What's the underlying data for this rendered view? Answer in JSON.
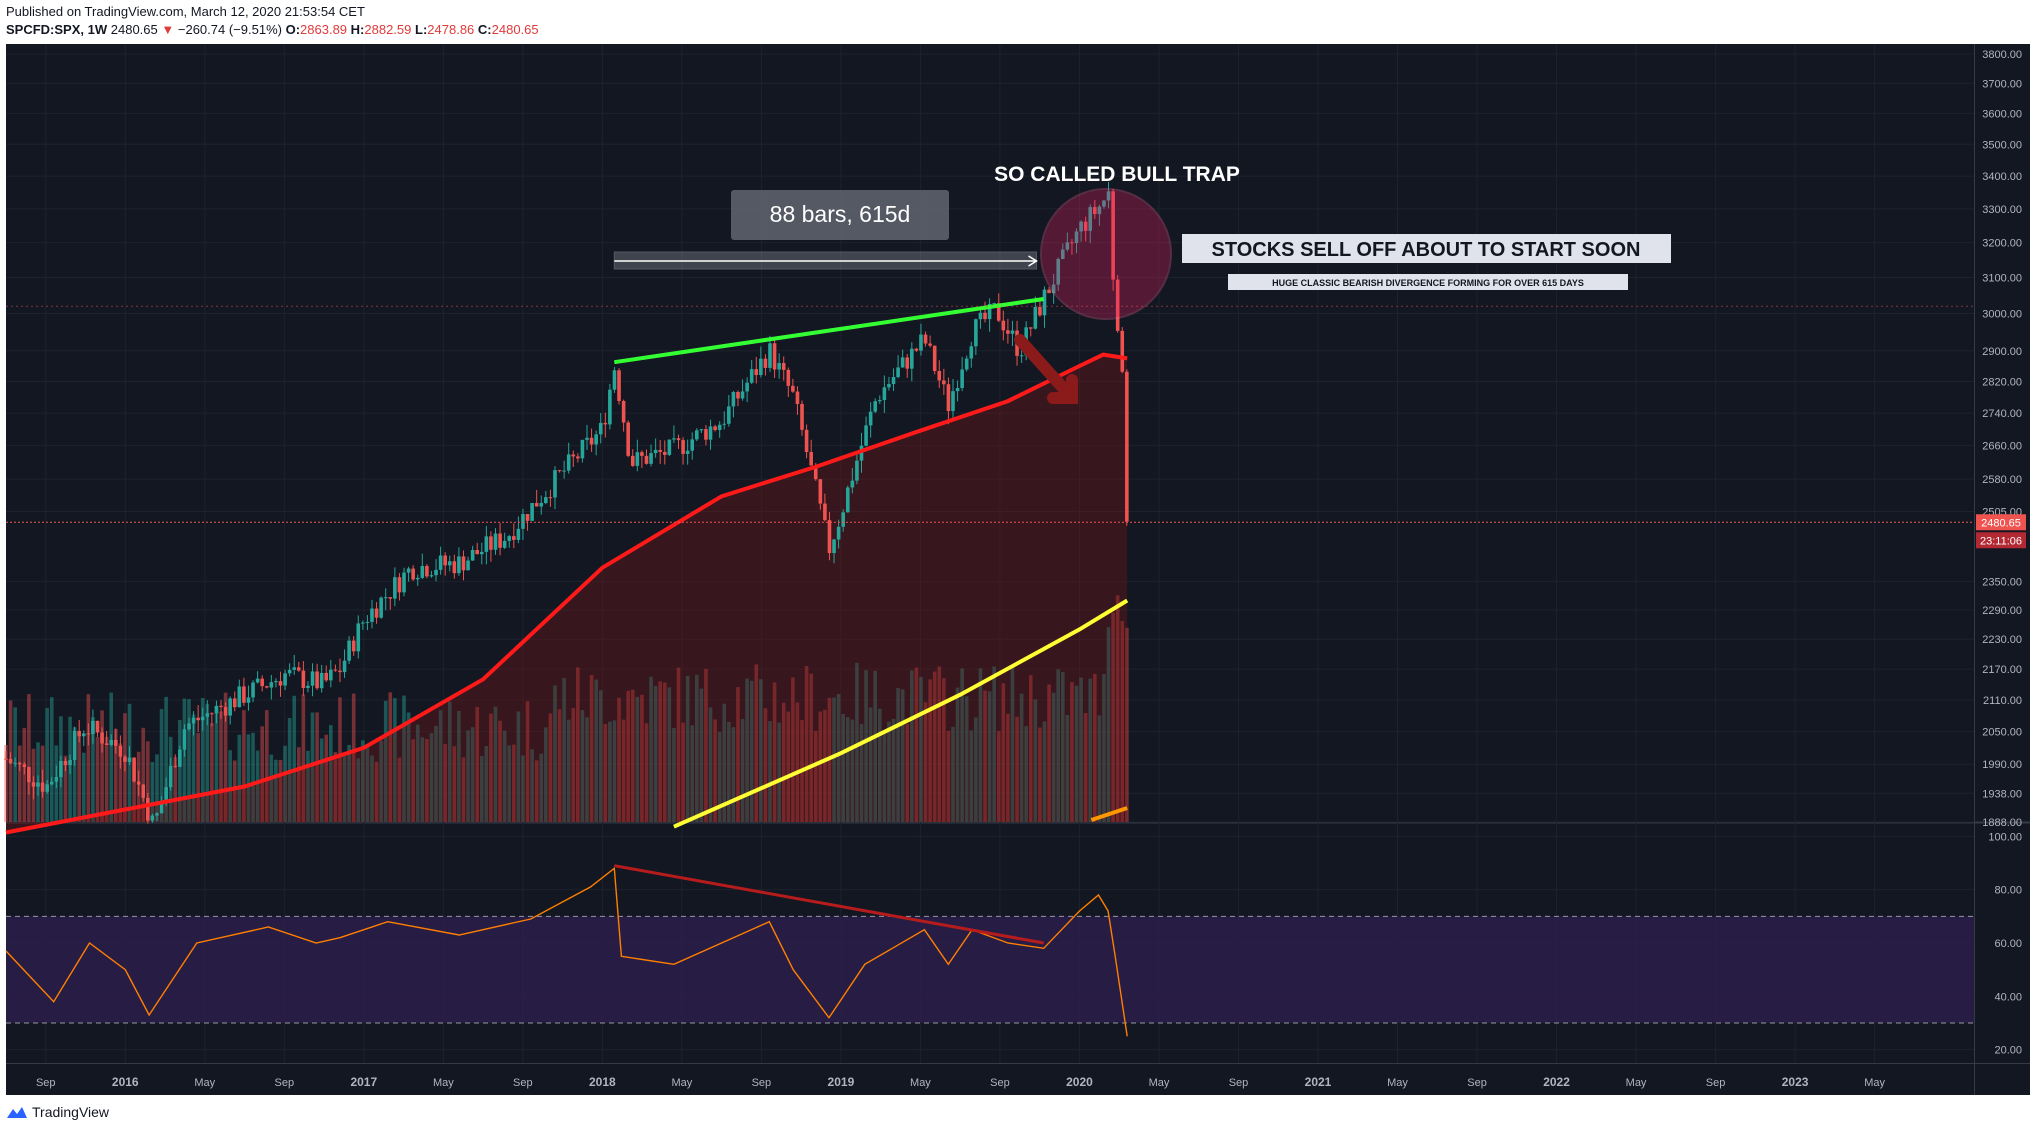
{
  "header": {
    "published": "Published on TradingView.com, March 12, 2020 21:53:54 CET",
    "symbol": "SPCFD:SPX, 1W",
    "last": "2480.65",
    "change_arrow": "▼",
    "change": "−260.74 (−9.51%)",
    "o_label": "O:",
    "o": "2863.89",
    "h_label": "H:",
    "h": "2882.59",
    "l_label": "L:",
    "l": "2478.86",
    "c_label": "C:",
    "c": "2480.65"
  },
  "footer": {
    "brand": "TradingView",
    "logo_icon": "tradingview-logo-icon"
  },
  "annotations": {
    "measure_label": "88 bars, 615d",
    "bull_trap": "SO CALLED BULL TRAP",
    "sell_off": "STOCKS SELL OFF ABOUT TO START SOON",
    "divergence": "HUGE CLASSIC BEARISH DIVERGENCE FORMING FOR OVER 615 DAYS"
  },
  "colors": {
    "background": "#131722",
    "up": "#26a69a",
    "down": "#ef5350",
    "ma_red": "#ff1a1a",
    "ma_yellow": "#ffff33",
    "trend_green": "#33ff33",
    "rsi_line": "#ff7f00",
    "rsi_band": "#2d1e4d"
  },
  "chart_data": [
    {
      "type": "candlestick",
      "timeframe": "1W",
      "yscale": "log",
      "y_ticks": [
        "3800.00",
        "3700.00",
        "3600.00",
        "3500.00",
        "3400.00",
        "3300.00",
        "3200.00",
        "3100.00",
        "3000.00",
        "2900.00",
        "2820.00",
        "2740.00",
        "2660.00",
        "2580.00",
        "2505.00",
        "2350.00",
        "2290.00",
        "2230.00",
        "2170.00",
        "2110.00",
        "2050.00",
        "1990.00",
        "1938.00",
        "1888.00"
      ],
      "x_ticks": [
        "Sep",
        "2016",
        "May",
        "Sep",
        "2017",
        "May",
        "Sep",
        "2018",
        "May",
        "Sep",
        "2019",
        "May",
        "Sep",
        "2020",
        "May",
        "Sep",
        "2021",
        "May",
        "Sep",
        "2022",
        "May",
        "Sep",
        "2023",
        "May"
      ],
      "last_price_label": "2480.65",
      "countdown_label": "23:11:06",
      "close_path": [
        [
          2015.5,
          2000
        ],
        [
          2015.67,
          1950
        ],
        [
          2015.83,
          2060
        ],
        [
          2016.0,
          2015
        ],
        [
          2016.12,
          1880
        ],
        [
          2016.25,
          2060
        ],
        [
          2016.5,
          2120
        ],
        [
          2016.67,
          2160
        ],
        [
          2016.83,
          2140
        ],
        [
          2016.9,
          2170
        ],
        [
          2017.0,
          2270
        ],
        [
          2017.2,
          2380
        ],
        [
          2017.4,
          2390
        ],
        [
          2017.6,
          2450
        ],
        [
          2017.8,
          2575
        ],
        [
          2018.0,
          2700
        ],
        [
          2018.05,
          2860
        ],
        [
          2018.12,
          2620
        ],
        [
          2018.3,
          2650
        ],
        [
          2018.5,
          2720
        ],
        [
          2018.7,
          2900
        ],
        [
          2018.8,
          2780
        ],
        [
          2018.95,
          2420
        ],
        [
          2019.0,
          2500
        ],
        [
          2019.15,
          2780
        ],
        [
          2019.35,
          2930
        ],
        [
          2019.45,
          2760
        ],
        [
          2019.55,
          2950
        ],
        [
          2019.65,
          3010
        ],
        [
          2019.75,
          2900
        ],
        [
          2019.85,
          3040
        ],
        [
          2020.0,
          3240
        ],
        [
          2020.1,
          3320
        ],
        [
          2020.12,
          3370
        ],
        [
          2020.15,
          3000
        ],
        [
          2020.17,
          2970
        ],
        [
          2020.2,
          2480.65
        ]
      ],
      "ma_red": [
        [
          2015.5,
          1870
        ],
        [
          2016.5,
          1950
        ],
        [
          2017.0,
          2020
        ],
        [
          2017.5,
          2150
        ],
        [
          2018.0,
          2380
        ],
        [
          2018.5,
          2540
        ],
        [
          2018.9,
          2610
        ],
        [
          2019.3,
          2690
        ],
        [
          2019.7,
          2770
        ],
        [
          2020.0,
          2860
        ],
        [
          2020.1,
          2890
        ],
        [
          2020.2,
          2880
        ]
      ],
      "ma_yellow": [
        [
          2018.3,
          1880
        ],
        [
          2019.0,
          2010
        ],
        [
          2019.5,
          2120
        ],
        [
          2020.0,
          2250
        ],
        [
          2020.2,
          2310
        ]
      ],
      "trendline": {
        "from": [
          2018.05,
          2870
        ],
        "to": [
          2019.85,
          3040
        ]
      },
      "measure": {
        "from": 2018.05,
        "to": 2019.82,
        "bars": 88,
        "days": 615
      }
    },
    {
      "type": "line",
      "name": "RSI",
      "y_ticks": [
        "100.00",
        "80.00",
        "60.00",
        "40.00",
        "20.00"
      ],
      "ylim": [
        15,
        105
      ],
      "bands": [
        30,
        70
      ],
      "values": [
        [
          2015.5,
          57
        ],
        [
          2015.7,
          38
        ],
        [
          2015.85,
          60
        ],
        [
          2016.0,
          50
        ],
        [
          2016.1,
          33
        ],
        [
          2016.3,
          60
        ],
        [
          2016.6,
          66
        ],
        [
          2016.8,
          60
        ],
        [
          2016.9,
          62
        ],
        [
          2017.1,
          68
        ],
        [
          2017.4,
          63
        ],
        [
          2017.7,
          69
        ],
        [
          2017.95,
          81
        ],
        [
          2018.05,
          88
        ],
        [
          2018.08,
          55
        ],
        [
          2018.3,
          52
        ],
        [
          2018.5,
          60
        ],
        [
          2018.7,
          68
        ],
        [
          2018.8,
          50
        ],
        [
          2018.95,
          32
        ],
        [
          2019.1,
          52
        ],
        [
          2019.35,
          65
        ],
        [
          2019.45,
          52
        ],
        [
          2019.55,
          65
        ],
        [
          2019.7,
          60
        ],
        [
          2019.85,
          58
        ],
        [
          2020.0,
          72
        ],
        [
          2020.08,
          78
        ],
        [
          2020.12,
          72
        ],
        [
          2020.15,
          55
        ],
        [
          2020.2,
          25
        ]
      ],
      "divergence": {
        "from": [
          2018.05,
          89
        ],
        "to": [
          2019.85,
          60
        ]
      }
    }
  ]
}
